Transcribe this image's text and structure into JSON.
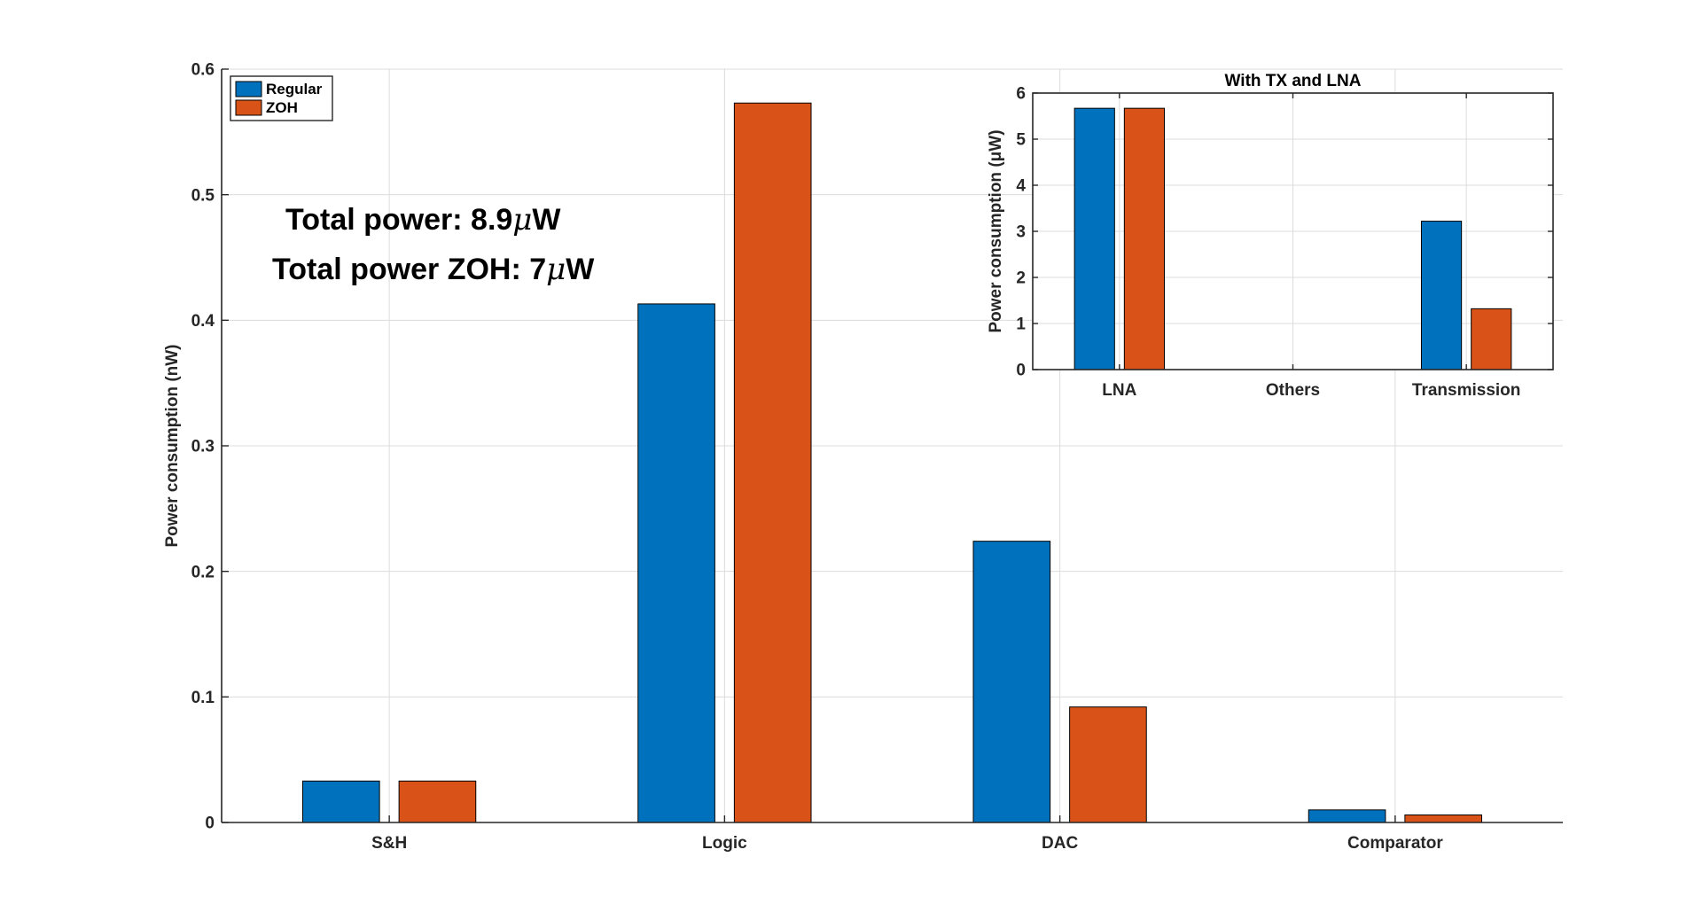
{
  "annotations": {
    "total_power_prefix": "Total power: 8.9",
    "total_power_unit": "W",
    "total_power_zoh_prefix": "Total power ZOH: 7",
    "total_power_zoh_unit": "W",
    "mu": "μ"
  },
  "colors": {
    "regular": "#0072BD",
    "zoh": "#D95319",
    "grid": "#dcdcdc",
    "axis": "#262626"
  },
  "chart_data": [
    {
      "type": "bar",
      "title": "",
      "xlabel": "",
      "ylabel": "Power consumption (nW)",
      "categories": [
        "S&H",
        "Logic",
        "DAC",
        "Comparator"
      ],
      "series": [
        {
          "name": "Regular",
          "values": [
            0.033,
            0.413,
            0.224,
            0.01
          ]
        },
        {
          "name": "ZOH",
          "values": [
            0.033,
            0.573,
            0.092,
            0.006
          ]
        }
      ],
      "ylim": [
        0,
        0.6
      ],
      "yticks": [
        0,
        0.1,
        0.2,
        0.3,
        0.4,
        0.5,
        0.6
      ],
      "ytick_labels": [
        "0",
        "0.1",
        "0.2",
        "0.3",
        "0.4",
        "0.5",
        "0.6"
      ],
      "grid": true,
      "legend": "top-left"
    },
    {
      "type": "bar",
      "title": "With TX and LNA",
      "xlabel": "",
      "ylabel": "Power consumption (μW)",
      "categories": [
        "LNA",
        "Others",
        "Transmission"
      ],
      "series": [
        {
          "name": "Regular",
          "values": [
            5.67,
            0,
            3.22
          ]
        },
        {
          "name": "ZOH",
          "values": [
            5.67,
            0,
            1.32
          ]
        }
      ],
      "ylim": [
        0,
        6
      ],
      "yticks": [
        0,
        1,
        2,
        3,
        4,
        5,
        6
      ],
      "ytick_labels": [
        "0",
        "1",
        "2",
        "3",
        "4",
        "5",
        "6"
      ],
      "grid": true,
      "legend": "none"
    }
  ]
}
